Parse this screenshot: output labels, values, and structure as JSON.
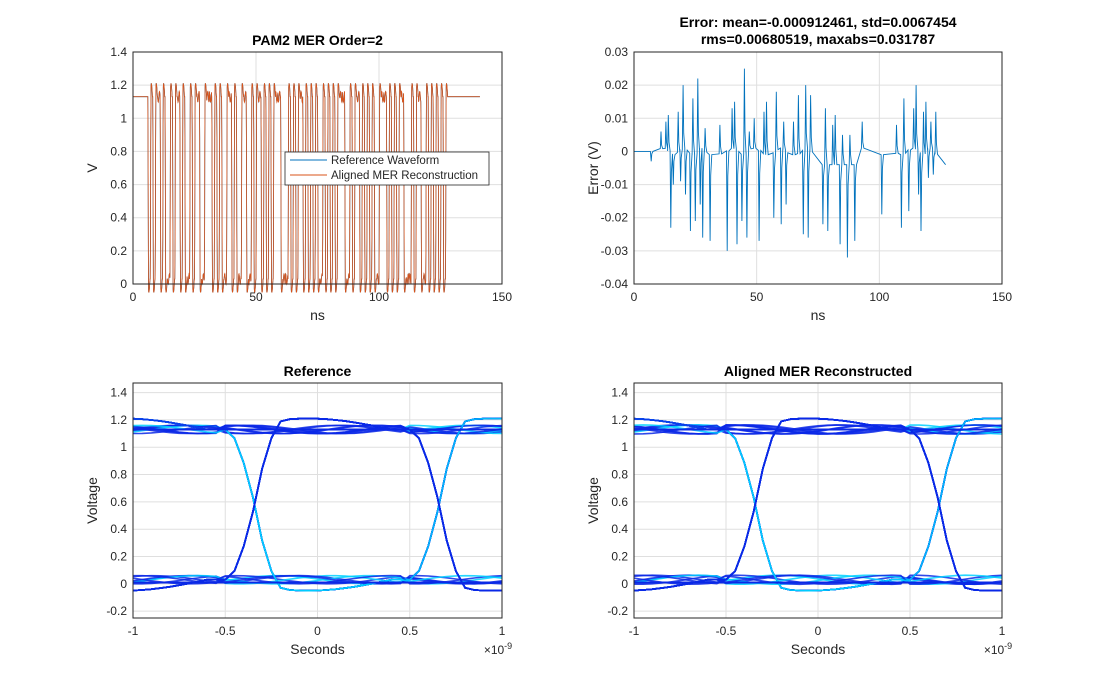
{
  "chart_data": [
    {
      "type": "line",
      "title": "PAM2 MER Order=2",
      "xlabel": "ns",
      "ylabel": "V",
      "xlim": [
        0,
        150
      ],
      "ylim": [
        0,
        1.4
      ],
      "xticks": [
        "0",
        "50",
        "100",
        "150"
      ],
      "yticks": [
        "0",
        "0.2",
        "0.4",
        "0.6",
        "0.8",
        "1",
        "1.2",
        "1.4"
      ],
      "grid": true,
      "legend_placement": "center-right",
      "series": [
        {
          "name": "Reference Waveform",
          "color": "#0072BD"
        },
        {
          "name": "Aligned MER Reconstruction",
          "color": "#D95319"
        }
      ],
      "idle_level": 1.13,
      "start_ns": 6,
      "end_ns": 128,
      "stop_ns": 141,
      "bit_period_ns": 1,
      "bits": "01011010010110100101100111010100110100110010110101011100010101101010100101010111001011010101001110101011000101100101010101011"
    },
    {
      "type": "line",
      "title": "Error: mean=-0.000912461, std=0.0067454",
      "title2": "rms=0.00680519, maxabs=0.031787",
      "xlabel": "ns",
      "ylabel": "Error (V)",
      "xlim": [
        0,
        150
      ],
      "ylim": [
        -0.04,
        0.03
      ],
      "xticks": [
        "0",
        "50",
        "100",
        "150"
      ],
      "yticks": [
        "-0.04",
        "-0.03",
        "-0.02",
        "-0.01",
        "0",
        "0.01",
        "0.02",
        "0.03"
      ],
      "grid": true,
      "color": "#0072BD",
      "spikes": [
        [
          7,
          -0.003
        ],
        [
          11,
          0.006
        ],
        [
          13,
          0.009
        ],
        [
          14,
          0.011
        ],
        [
          15,
          -0.023
        ],
        [
          16,
          -0.01
        ],
        [
          18,
          0.012
        ],
        [
          19,
          -0.009
        ],
        [
          20,
          0.02
        ],
        [
          21,
          -0.013
        ],
        [
          23,
          -0.024
        ],
        [
          24,
          0.016
        ],
        [
          25,
          -0.021
        ],
        [
          26,
          0.022
        ],
        [
          27,
          -0.016
        ],
        [
          28,
          -0.026
        ],
        [
          29,
          0.007
        ],
        [
          31,
          -0.027
        ],
        [
          35,
          0.008
        ],
        [
          38,
          -0.03
        ],
        [
          40,
          0.013
        ],
        [
          41,
          0.015
        ],
        [
          42,
          -0.028
        ],
        [
          44,
          -0.021
        ],
        [
          45,
          0.025
        ],
        [
          46,
          -0.026
        ],
        [
          47,
          0.006
        ],
        [
          49,
          0.01
        ],
        [
          51,
          -0.027
        ],
        [
          53,
          0.012
        ],
        [
          54,
          0.015
        ],
        [
          57,
          -0.02
        ],
        [
          58,
          0.018
        ],
        [
          60,
          -0.022
        ],
        [
          61,
          0.009
        ],
        [
          62,
          -0.016
        ],
        [
          65,
          0.009
        ],
        [
          67,
          0.017
        ],
        [
          69,
          -0.025
        ],
        [
          70,
          0.02
        ],
        [
          71,
          -0.026
        ],
        [
          72,
          0.017
        ],
        [
          77,
          -0.022
        ],
        [
          78,
          0.013
        ],
        [
          79,
          -0.024
        ],
        [
          81,
          0.008
        ],
        [
          82,
          0.011
        ],
        [
          84,
          -0.028
        ],
        [
          85,
          0.005
        ],
        [
          87,
          -0.032
        ],
        [
          88,
          0.005
        ],
        [
          90,
          -0.027
        ],
        [
          93,
          0.009
        ],
        [
          101,
          -0.019
        ],
        [
          107,
          0.008
        ],
        [
          109,
          -0.023
        ],
        [
          110,
          0.016
        ],
        [
          112,
          -0.018
        ],
        [
          114,
          0.013
        ],
        [
          115,
          0.02
        ],
        [
          116,
          -0.013
        ],
        [
          117,
          -0.024
        ],
        [
          118,
          0.012
        ],
        [
          119,
          0.015
        ],
        [
          120,
          -0.008
        ],
        [
          121,
          0.009
        ],
        [
          122,
          -0.007
        ],
        [
          123,
          0.012
        ]
      ]
    },
    {
      "type": "heatmap",
      "title": "Reference",
      "xlabel": "Seconds",
      "ylabel": "Voltage",
      "xlim": [
        -1e-09,
        1e-09
      ],
      "ylim": [
        -0.25,
        1.47
      ],
      "xticks": [
        "-1",
        "-0.5",
        "0",
        "0.5",
        "1"
      ],
      "x_exponent": "×10",
      "x_exponent_power": "-9",
      "yticks": [
        "-0.2",
        "0",
        "0.2",
        "0.4",
        "0.6",
        "0.8",
        "1",
        "1.2",
        "1.4"
      ],
      "grid": true,
      "colormap": "jet"
    },
    {
      "type": "heatmap",
      "title": "Aligned MER Reconstructed",
      "xlabel": "Seconds",
      "ylabel": "Voltage",
      "xlim": [
        -1e-09,
        1e-09
      ],
      "ylim": [
        -0.25,
        1.47
      ],
      "xticks": [
        "-1",
        "-0.5",
        "0",
        "0.5",
        "1"
      ],
      "x_exponent": "×10",
      "x_exponent_power": "-9",
      "yticks": [
        "-0.2",
        "0",
        "0.2",
        "0.4",
        "0.6",
        "0.8",
        "1",
        "1.2",
        "1.4"
      ],
      "grid": true,
      "colormap": "jet"
    }
  ]
}
